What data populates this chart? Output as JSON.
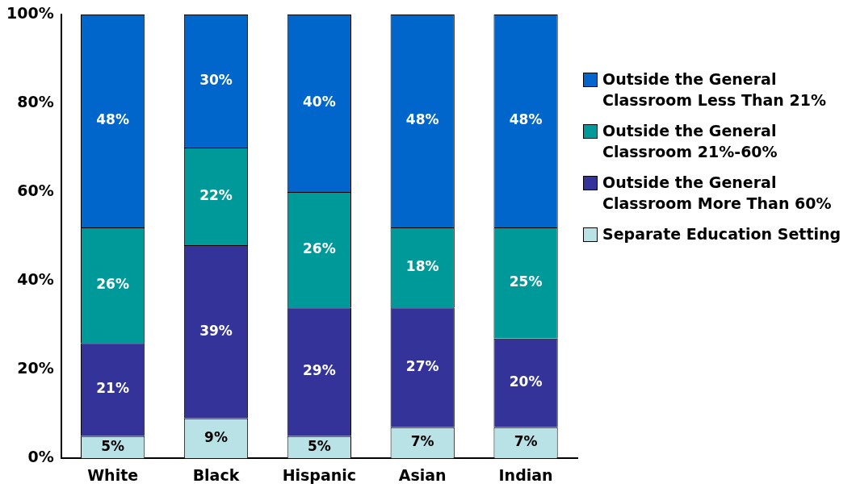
{
  "chart_data": {
    "type": "bar",
    "stacked": true,
    "categories": [
      "White",
      "Black",
      "Hispanic",
      "Asian",
      "Indian"
    ],
    "series": [
      {
        "name": "Separate Education Setting",
        "color": "#b9e2e6",
        "values": [
          5,
          9,
          5,
          7,
          7
        ],
        "value_labels": [
          "5%",
          "9%",
          "5%",
          "7%",
          "7%"
        ]
      },
      {
        "name": "Outside the General Classroom More Than 60%",
        "color": "#333399",
        "values": [
          21,
          39,
          29,
          27,
          20
        ],
        "value_labels": [
          "21%",
          "39%",
          "29%",
          "27%",
          "20%"
        ]
      },
      {
        "name": "Outside the General Classroom 21%-60%",
        "color": "#009999",
        "values": [
          26,
          22,
          26,
          18,
          25
        ],
        "value_labels": [
          "26%",
          "22%",
          "26%",
          "18%",
          "25%"
        ]
      },
      {
        "name": "Outside the General Classroom Less Than 21%",
        "color": "#0066cc",
        "values": [
          48,
          30,
          40,
          48,
          48
        ],
        "value_labels": [
          "48%",
          "30%",
          "40%",
          "48%",
          "48%"
        ]
      }
    ],
    "ylim": [
      0,
      100
    ],
    "yticks": [
      {
        "value": 0,
        "label": "0%"
      },
      {
        "value": 20,
        "label": "20%"
      },
      {
        "value": 40,
        "label": "40%"
      },
      {
        "value": 60,
        "label": "60%"
      },
      {
        "value": 80,
        "label": "80%"
      },
      {
        "value": 100,
        "label": "100%"
      }
    ],
    "grid": false,
    "legend": "right"
  }
}
